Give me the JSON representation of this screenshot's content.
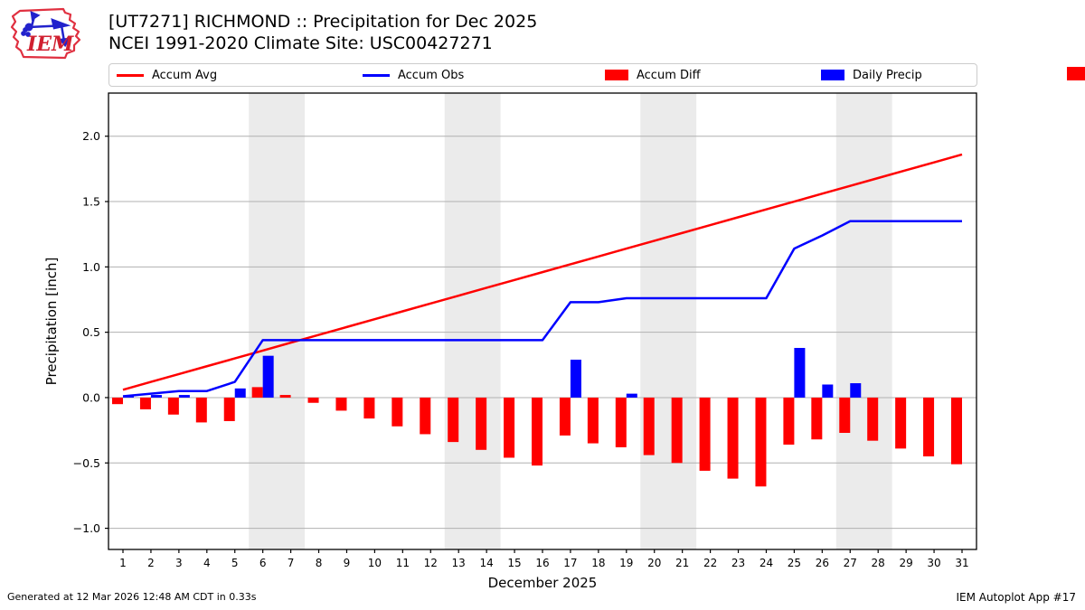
{
  "header": {
    "title_line1": "[UT7271] RICHMOND :: Precipitation for Dec 2025",
    "title_line2": "NCEI 1991-2020 Climate Site: USC00427271",
    "logo_text": "IEM"
  },
  "legend": {
    "items": [
      {
        "label": "Accum Avg",
        "swatch": "line",
        "color": "#ff0000"
      },
      {
        "label": "Accum Obs",
        "swatch": "line",
        "color": "#0000ff"
      },
      {
        "label": "Accum Diff",
        "swatch": "patch",
        "color": "#ff0000"
      },
      {
        "label": "Daily Precip",
        "swatch": "patch",
        "color": "#0000ff"
      }
    ]
  },
  "footer": {
    "left": "Generated at 12 Mar 2026 12:48 AM CDT in 0.33s",
    "right": "IEM Autoplot App #17"
  },
  "chart_data": {
    "type": "bar",
    "subtype": "combo-bar-line",
    "xlabel": "December 2025",
    "ylabel": "Precipitation [inch]",
    "x": [
      1,
      2,
      3,
      4,
      5,
      6,
      7,
      8,
      9,
      10,
      11,
      12,
      13,
      14,
      15,
      16,
      17,
      18,
      19,
      20,
      21,
      22,
      23,
      24,
      25,
      26,
      27,
      28,
      29,
      30,
      31
    ],
    "ylim": [
      -1.162,
      2.33
    ],
    "yticks": [
      2.0,
      1.5,
      1.0,
      0.5,
      0.0,
      -0.5,
      -1.0
    ],
    "grid": "horizontal",
    "legend_position": "top",
    "weekend_bands_days": [
      [
        5.5,
        7.5
      ],
      [
        12.5,
        14.5
      ],
      [
        19.5,
        21.5
      ],
      [
        26.5,
        28.5
      ]
    ],
    "series": [
      {
        "name": "Accum Avg",
        "type": "line",
        "color": "#ff0000",
        "values": [
          0.06,
          0.12,
          0.18,
          0.24,
          0.3,
          0.36,
          0.42,
          0.48,
          0.54,
          0.6,
          0.66,
          0.72,
          0.78,
          0.84,
          0.9,
          0.96,
          1.02,
          1.08,
          1.14,
          1.2,
          1.26,
          1.32,
          1.38,
          1.44,
          1.5,
          1.56,
          1.62,
          1.68,
          1.74,
          1.8,
          1.86
        ]
      },
      {
        "name": "Accum Obs",
        "type": "line",
        "color": "#0000ff",
        "values": [
          0.01,
          0.03,
          0.05,
          0.05,
          0.12,
          0.44,
          0.44,
          0.44,
          0.44,
          0.44,
          0.44,
          0.44,
          0.44,
          0.44,
          0.44,
          0.44,
          0.73,
          0.73,
          0.76,
          0.76,
          0.76,
          0.76,
          0.76,
          0.76,
          1.14,
          1.24,
          1.35,
          1.35,
          1.35,
          1.35,
          1.35
        ]
      },
      {
        "name": "Accum Diff",
        "type": "bar",
        "color": "#ff0000",
        "bar_side": "left",
        "values": [
          -0.05,
          -0.09,
          -0.13,
          -0.19,
          -0.18,
          0.08,
          0.02,
          -0.04,
          -0.1,
          -0.16,
          -0.22,
          -0.28,
          -0.34,
          -0.4,
          -0.46,
          -0.52,
          -0.29,
          -0.35,
          -0.38,
          -0.44,
          -0.5,
          -0.56,
          -0.62,
          -0.68,
          -0.36,
          -0.32,
          -0.27,
          -0.33,
          -0.39,
          -0.45,
          -0.51
        ]
      },
      {
        "name": "Daily Precip",
        "type": "bar",
        "color": "#0000ff",
        "bar_side": "right",
        "values": [
          0.01,
          0.02,
          0.02,
          0.0,
          0.07,
          0.32,
          0,
          0,
          0,
          0,
          0,
          0,
          0,
          0,
          0,
          0,
          0.29,
          0,
          0.03,
          0,
          0,
          0,
          0,
          0,
          0.38,
          0.1,
          0.11,
          0,
          0,
          0,
          0
        ]
      }
    ],
    "colors": {
      "grid": "#b0b0b0",
      "weekend_band": "#ebebeb",
      "spine": "#000000",
      "tick_text": "#000000"
    }
  }
}
